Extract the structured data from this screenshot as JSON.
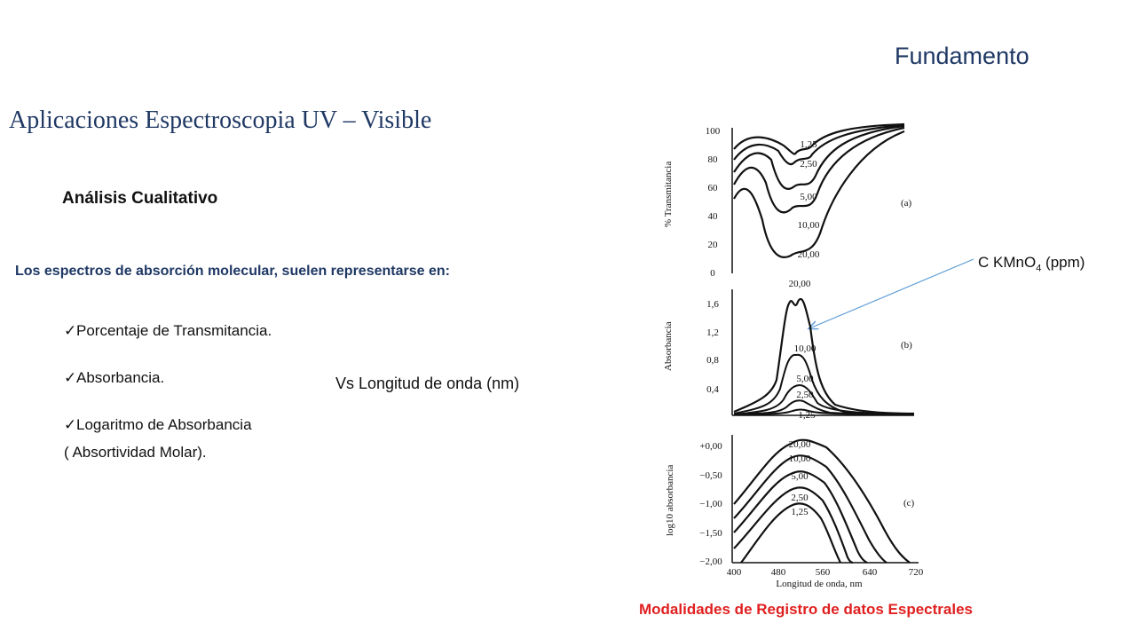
{
  "header": {
    "corner_title": "Fundamento"
  },
  "slide": {
    "title": "Aplicaciones Espectroscopia UV – Visible",
    "subtitle": "Análisis Cualitativo",
    "intro": "Los espectros de absorción molecular, suelen representarse en:",
    "bullets": [
      {
        "icon": "checkmark-icon",
        "text": "Porcentaje de Transmitancia."
      },
      {
        "icon": "checkmark-icon",
        "text": "Absorbancia."
      },
      {
        "icon": "checkmark-icon",
        "text": "Logaritmo de Absorbancia"
      }
    ],
    "bullet3_cont": "( Absortividad Molar).",
    "versus": "Vs Longitud de onda (nm)"
  },
  "figure": {
    "concentration_label_main": "C KMnO",
    "concentration_label_sub": "4",
    "concentration_label_unit": " (ppm)",
    "caption": "Modalidades de Registro de datos Espectrales",
    "panel_a": {
      "ylabel": "% Transmitancia",
      "tag": "(a)",
      "yticks": [
        "100",
        "80",
        "60",
        "40",
        "20",
        "0"
      ],
      "curve_labels": [
        "1,25",
        "2,50",
        "5,00",
        "10,00",
        "20,00"
      ]
    },
    "panel_b": {
      "ylabel": "Absorbancia",
      "tag": "(b)",
      "yticks": [
        "1,6",
        "1,2",
        "0,8",
        "0,4"
      ],
      "curve_labels": [
        "20,00",
        "10,00",
        "5,00",
        "2,50",
        "1,25"
      ]
    },
    "panel_c": {
      "ylabel": "log10 absorbancia",
      "tag": "(c)",
      "yticks": [
        "+0,00",
        "−0,50",
        "−1,00",
        "−1,50",
        "−2,00"
      ],
      "curve_labels": [
        "20,00",
        "10,00",
        "5,00",
        "2,50",
        "1,25"
      ]
    },
    "xticks": [
      "400",
      "480",
      "560",
      "640",
      "720"
    ],
    "xlabel": "Longitud de onda, nm"
  }
}
